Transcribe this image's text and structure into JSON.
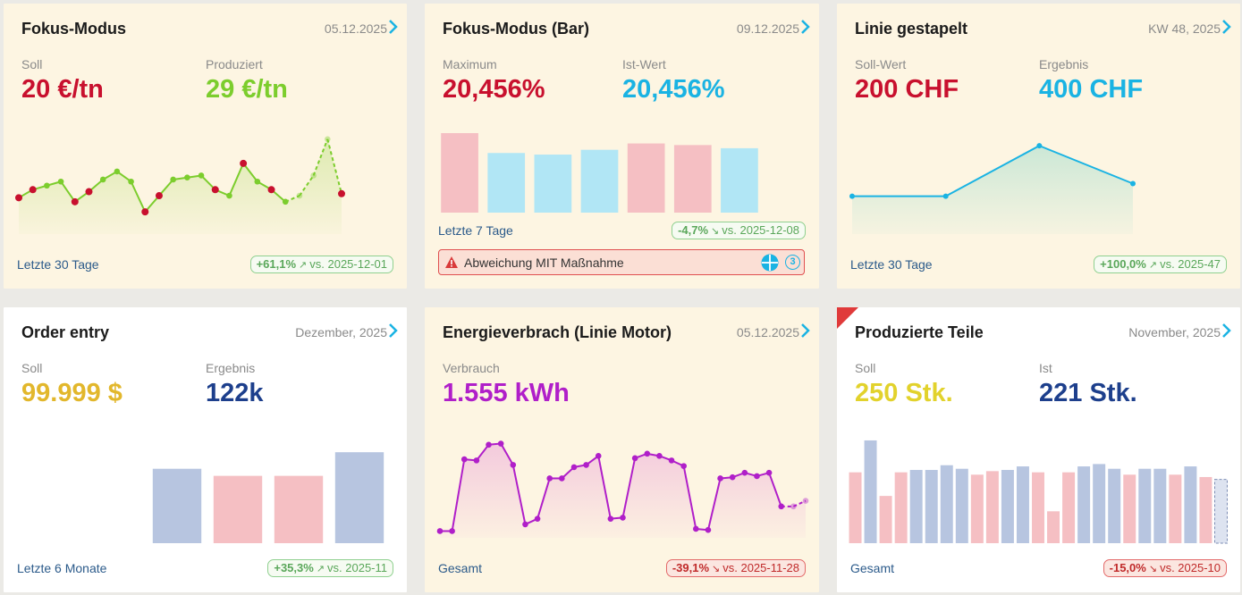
{
  "colors": {
    "red": "#c8102e",
    "green": "#7ccd2d",
    "cyan": "#1ab3e3",
    "gold": "#e2b72c",
    "navy": "#1d3f8c",
    "purple": "#b01fc9",
    "pink": "#f5bfc3",
    "lightcyan": "#b1e6f5",
    "slate": "#b7c5e0"
  },
  "cards": [
    {
      "title": "Fokus-Modus",
      "date": "05.12.2025",
      "left": {
        "label": "Soll",
        "value": "20 €/tn"
      },
      "right": {
        "label": "Produziert",
        "value": "29 €/tn"
      },
      "footer": "Letzte 30 Tage",
      "badge": {
        "pct": "+61,1%",
        "text": "vs. 2025-12-01"
      }
    },
    {
      "title": "Fokus-Modus (Bar)",
      "date": "09.12.2025",
      "left": {
        "label": "Maximum",
        "value": "20,456%"
      },
      "right": {
        "label": "Ist-Wert",
        "value": "20,456%"
      },
      "footer": "Letzte 7 Tage",
      "badge": {
        "pct": "-4,7%",
        "text": "vs. 2025-12-08"
      },
      "alert": {
        "text": "Abweichung MIT Maßnahme",
        "count": "3"
      }
    },
    {
      "title": "Linie gestapelt",
      "date": "KW 48, 2025",
      "left": {
        "label": "Soll-Wert",
        "value": "200 CHF"
      },
      "right": {
        "label": "Ergebnis",
        "value": "400 CHF"
      },
      "footer": "Letzte 30 Tage",
      "badge": {
        "pct": "+100,0%",
        "text": "vs. 2025-47"
      }
    },
    {
      "title": "Order entry",
      "date": "Dezember, 2025",
      "left": {
        "label": "Soll",
        "value": "99.999 $"
      },
      "right": {
        "label": "Ergebnis",
        "value": "122k"
      },
      "footer": "Letzte 6 Monate",
      "badge": {
        "pct": "+35,3%",
        "text": "vs. 2025-11"
      }
    },
    {
      "title": "Energieverbrach (Linie Motor)",
      "date": "05.12.2025",
      "left": {
        "label": "Verbrauch",
        "value": "1.555 kWh"
      },
      "footer": "Gesamt",
      "badge": {
        "pct": "-39,1%",
        "text": "vs. 2025-11-28"
      }
    },
    {
      "title": "Produzierte Teile",
      "date": "November, 2025",
      "left": {
        "label": "Soll",
        "value": "250 Stk."
      },
      "right": {
        "label": "Ist",
        "value": "221 Stk."
      },
      "footer": "Gesamt",
      "badge": {
        "pct": "-15,0%",
        "text": "vs. 2025-10"
      }
    }
  ],
  "chart_data": [
    {
      "type": "line",
      "title": "Fokus-Modus",
      "values": [
        58,
        62,
        64,
        66,
        56,
        61,
        67,
        71,
        66,
        51,
        59,
        67,
        68,
        69,
        62,
        59,
        75,
        66,
        62,
        56,
        59,
        69,
        87,
        60
      ],
      "below_target_points": [
        0,
        1,
        4,
        5,
        9,
        10,
        14,
        16,
        18,
        23
      ],
      "projected_from": 19
    },
    {
      "type": "bar",
      "title": "Fokus-Modus (Bar)",
      "values": [
        100,
        75,
        73,
        79,
        87,
        85,
        81
      ],
      "colors": [
        "pink",
        "lightcyan",
        "lightcyan",
        "lightcyan",
        "pink",
        "pink",
        "lightcyan"
      ]
    },
    {
      "type": "area",
      "title": "Linie gestapelt",
      "values": [
        200,
        200,
        400,
        250
      ]
    },
    {
      "type": "bar",
      "title": "Order entry",
      "values": [
        63,
        57,
        57,
        77
      ],
      "colors": [
        "slate",
        "pink",
        "pink",
        "slate"
      ]
    },
    {
      "type": "line",
      "title": "Energieverbrach (Linie Motor)",
      "values": [
        6,
        6,
        70,
        69,
        83,
        84,
        65,
        12,
        17,
        53,
        53,
        63,
        65,
        73,
        17,
        18,
        71,
        75,
        73,
        69,
        64,
        8,
        7,
        53,
        54,
        58,
        55,
        58,
        28,
        28,
        33
      ],
      "projected_from": 28
    },
    {
      "type": "bar",
      "title": "Produzierte Teile",
      "values": [
        60,
        87,
        40,
        60,
        62,
        62,
        66,
        63,
        58,
        61,
        62,
        65,
        60,
        27,
        60,
        65,
        67,
        63,
        58,
        63,
        63,
        58,
        65,
        56,
        54
      ],
      "colors": [
        "pink",
        "slate",
        "pink",
        "pink",
        "slate",
        "slate",
        "slate",
        "slate",
        "pink",
        "pink",
        "slate",
        "slate",
        "pink",
        "pink",
        "pink",
        "slate",
        "slate",
        "slate",
        "pink",
        "slate",
        "slate",
        "pink",
        "slate",
        "pink",
        "slate"
      ],
      "projected_last": true
    }
  ]
}
